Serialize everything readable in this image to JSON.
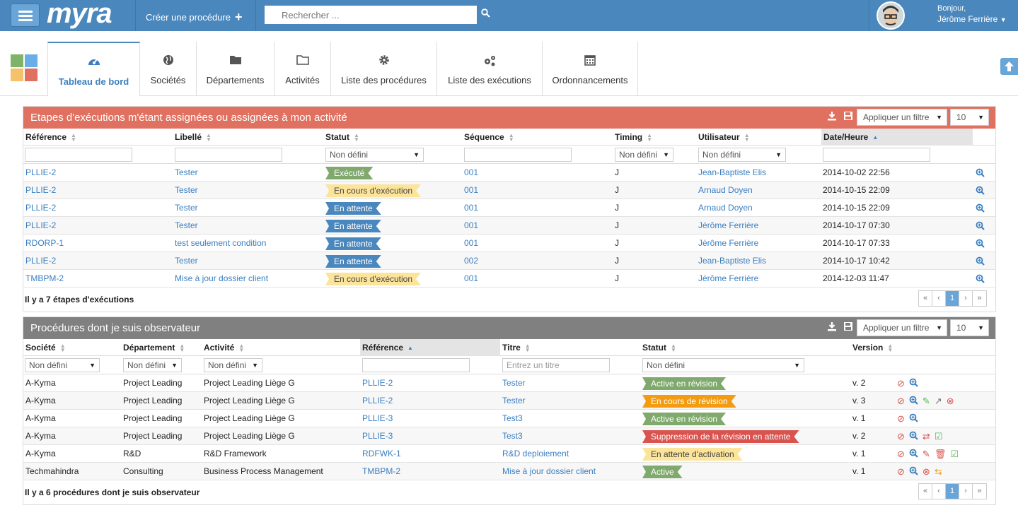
{
  "app": {
    "logo": "myra",
    "create_label": "Créer une procédure",
    "search_placeholder": "Rechercher ...",
    "greeting": "Bonjour,",
    "user_name": "Jérôme Ferrière"
  },
  "tabs": [
    {
      "label": "Tableau de bord",
      "icon": "dashboard-icon"
    },
    {
      "label": "Sociétés",
      "icon": "globe-icon"
    },
    {
      "label": "Départements",
      "icon": "folder-icon"
    },
    {
      "label": "Activités",
      "icon": "folder-open-icon"
    },
    {
      "label": "Liste des procédures",
      "icon": "gear-icon"
    },
    {
      "label": "Liste des exécutions",
      "icon": "gears-icon"
    },
    {
      "label": "Ordonnancements",
      "icon": "calendar-icon"
    }
  ],
  "panel1": {
    "title": "Etapes d'exécutions m'étant assignées ou assignées à mon activité",
    "filter_label": "Appliquer un filtre",
    "page_size": "10",
    "columns": [
      "Référence",
      "Libellé",
      "Statut",
      "Séquence",
      "Timing",
      "Utilisateur",
      "Date/Heure"
    ],
    "filter_defaults": {
      "statut": "Non défini",
      "timing": "Non défini",
      "utilisateur": "Non défini"
    },
    "rows": [
      {
        "ref": "PLLIE-2",
        "libelle": "Tester",
        "statut": "Exécuté",
        "seq": "001",
        "timing": "J",
        "user": "Jean-Baptiste Elis",
        "date": "2014-10-02 22:56"
      },
      {
        "ref": "PLLIE-2",
        "libelle": "Tester",
        "statut": "En cours d'exécution",
        "seq": "001",
        "timing": "J",
        "user": "Arnaud Doyen",
        "date": "2014-10-15 22:09"
      },
      {
        "ref": "PLLIE-2",
        "libelle": "Tester",
        "statut": "En attente",
        "seq": "001",
        "timing": "J",
        "user": "Arnaud Doyen",
        "date": "2014-10-15 22:09"
      },
      {
        "ref": "PLLIE-2",
        "libelle": "Tester",
        "statut": "En attente",
        "seq": "001",
        "timing": "J",
        "user": "Jérôme Ferrière",
        "date": "2014-10-17 07:30"
      },
      {
        "ref": "RDORP-1",
        "libelle": "test seulement condition",
        "statut": "En attente",
        "seq": "001",
        "timing": "J",
        "user": "Jérôme Ferrière",
        "date": "2014-10-17 07:33"
      },
      {
        "ref": "PLLIE-2",
        "libelle": "Tester",
        "statut": "En attente",
        "seq": "002",
        "timing": "J",
        "user": "Jean-Baptiste Elis",
        "date": "2014-10-17 10:42"
      },
      {
        "ref": "TMBPM-2",
        "libelle": "Mise à jour dossier client",
        "statut": "En cours d'exécution",
        "seq": "001",
        "timing": "J",
        "user": "Jérôme Ferrière",
        "date": "2014-12-03 11:47"
      }
    ],
    "footer": "Il y a 7 étapes d'exécutions",
    "page": "1"
  },
  "panel2": {
    "title": "Procédures dont je suis observateur",
    "filter_label": "Appliquer un filtre",
    "page_size": "10",
    "columns": [
      "Société",
      "Département",
      "Activité",
      "Référence",
      "Titre",
      "Statut",
      "Version"
    ],
    "filter_defaults": {
      "societe": "Non défini",
      "departement": "Non défini",
      "activite": "Non défini",
      "titre_placeholder": "Entrez un titre",
      "statut": "Non défini"
    },
    "rows": [
      {
        "societe": "A-Kyma",
        "dept": "Project Leading",
        "activite": "Project Leading Liège G",
        "ref": "PLLIE-2",
        "titre": "Tester",
        "statut": "Active en révision",
        "version": "v. 2"
      },
      {
        "societe": "A-Kyma",
        "dept": "Project Leading",
        "activite": "Project Leading Liège G",
        "ref": "PLLIE-2",
        "titre": "Tester",
        "statut": "En cours de révision",
        "version": "v. 3"
      },
      {
        "societe": "A-Kyma",
        "dept": "Project Leading",
        "activite": "Project Leading Liège G",
        "ref": "PLLIE-3",
        "titre": "Test3",
        "statut": "Active en révision",
        "version": "v. 1"
      },
      {
        "societe": "A-Kyma",
        "dept": "Project Leading",
        "activite": "Project Leading Liège G",
        "ref": "PLLIE-3",
        "titre": "Test3",
        "statut": "Suppression de la révision en attente",
        "version": "v. 2"
      },
      {
        "societe": "A-Kyma",
        "dept": "R&D",
        "activite": "R&D Framework",
        "ref": "RDFWK-1",
        "titre": "R&D deploiement",
        "statut": "En attente d'activation",
        "version": "v. 1"
      },
      {
        "societe": "Techmahindra",
        "dept": "Consulting",
        "activite": "Business Process Management",
        "ref": "TMBPM-2",
        "titre": "Mise à jour dossier client",
        "statut": "Active",
        "version": "v. 1"
      }
    ],
    "footer": "Il y a 6 procédures dont je suis observateur",
    "page": "1"
  },
  "colors": {
    "topbar": "#4a87bd",
    "panel1_header": "#e07060",
    "panel2_header": "#808080"
  }
}
